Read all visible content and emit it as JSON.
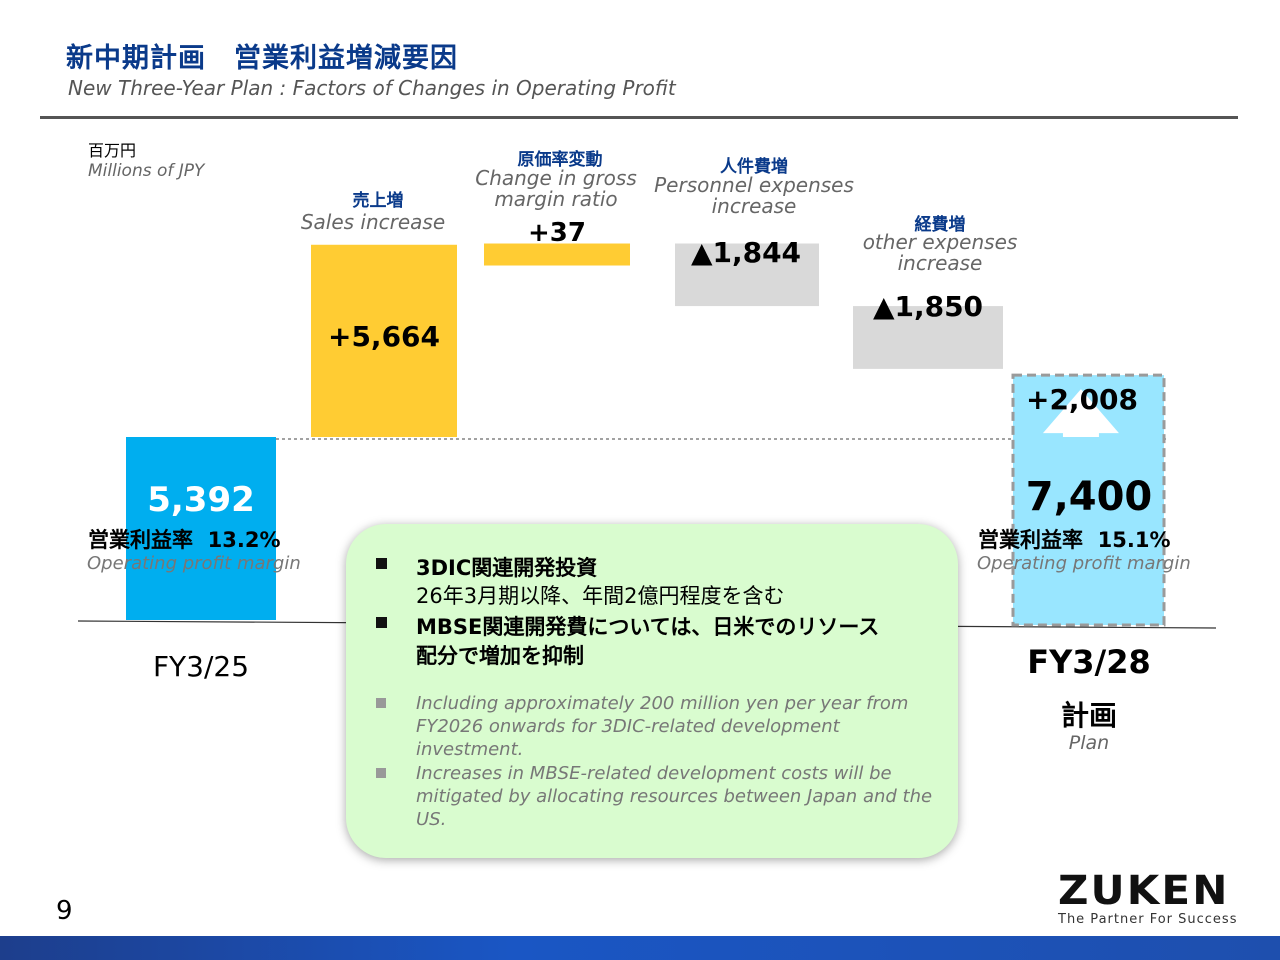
{
  "header": {
    "title_ja": "新中期計画　営業利益増減要因",
    "title_en": "New Three-Year Plan :  Factors of Changes in Operating Profit"
  },
  "unit": {
    "ja": "百万円",
    "en": "Millions of JPY"
  },
  "chart_data": {
    "type": "waterfall",
    "unit": "Millions of JPY",
    "steps": [
      {
        "label_ja": "",
        "label_en": "FY3/25",
        "kind": "total",
        "value": 5392,
        "display": "5,392",
        "color": "#00aeef"
      },
      {
        "label_ja": "売上増",
        "label_en": "Sales increase",
        "kind": "delta",
        "value": 5664,
        "display": "+5,664",
        "color": "#ffcc33"
      },
      {
        "label_ja": "原価率変動",
        "label_en": "Change in gross margin ratio",
        "kind": "delta",
        "value": 37,
        "display": "+37",
        "color": "#ffcc33"
      },
      {
        "label_ja": "人件費増",
        "label_en": "Personnel expenses increase",
        "kind": "delta",
        "value": -1844,
        "display": "▲1,844",
        "color": "#d9d9d9"
      },
      {
        "label_ja": "経費増",
        "label_en": "other expenses increase",
        "kind": "delta",
        "value": -1850,
        "display": "▲1,850",
        "color": "#d9d9d9"
      },
      {
        "label_ja": "計画",
        "label_en": "FY3/28",
        "kind": "total",
        "value": 7400,
        "display": "7,400",
        "color": "#99e6ff"
      }
    ],
    "change_total": {
      "value": 2008,
      "display": "+2,008"
    },
    "margin_start": {
      "label_ja": "営業利益率",
      "value": "13.2%",
      "label_en": "Operating profit margin"
    },
    "margin_end": {
      "label_ja": "営業利益率",
      "value": "15.1%",
      "label_en": "Operating profit margin"
    },
    "end_sublabel_en": "Plan"
  },
  "notes": {
    "ja_1_line1": "3DIC関連開発投資",
    "ja_1_line2": "26年3月期以降、年間2億円程度を含む",
    "ja_2_line1": "MBSE関連開発費については、日米でのリソース",
    "ja_2_line2": "配分で増加を抑制",
    "en_1": "Including approximately 200 million yen per year from FY2026 onwards for 3DIC-related development investment.",
    "en_2": "Increases in MBSE-related development costs will be mitigated by allocating resources between Japan and the US."
  },
  "footer": {
    "page_number": "9",
    "logo_name": "ZUKEN",
    "logo_tagline": "The Partner For Success"
  }
}
